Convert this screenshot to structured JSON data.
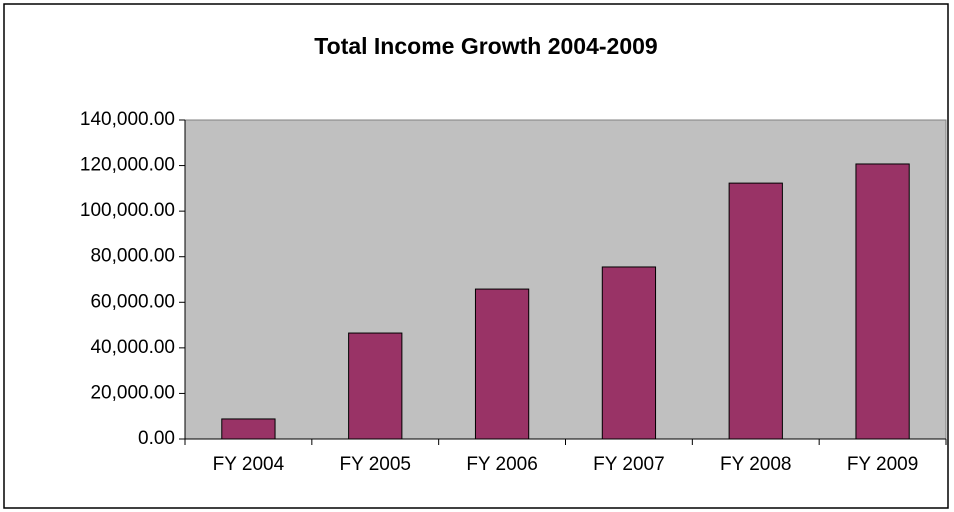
{
  "chart_data": {
    "type": "bar",
    "title": "Total Income Growth 2004-2009",
    "categories": [
      "FY 2004",
      "FY 2005",
      "FY 2006",
      "FY 2007",
      "FY 2008",
      "FY 2009"
    ],
    "values": [
      8800,
      46500,
      65800,
      75500,
      112300,
      120700
    ],
    "color": "#993366",
    "ylim": [
      0,
      140000
    ],
    "yticks": [
      {
        "value": 0,
        "label": "0.00"
      },
      {
        "value": 20000,
        "label": "20,000.00"
      },
      {
        "value": 40000,
        "label": "40,000.00"
      },
      {
        "value": 60000,
        "label": "60,000.00"
      },
      {
        "value": 80000,
        "label": "80,000.00"
      },
      {
        "value": 100000,
        "label": "100,000.00"
      },
      {
        "value": 120000,
        "label": "120,000.00"
      },
      {
        "value": 140000,
        "label": "140,000.00"
      }
    ],
    "grid": false
  }
}
